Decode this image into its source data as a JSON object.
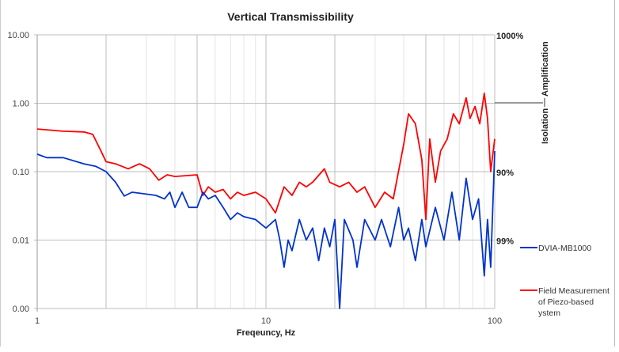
{
  "chart_data": {
    "type": "line",
    "title": "Vertical Transmissibility",
    "xlabel": "Freqeuncy, Hz",
    "ylabel": "",
    "x_scale": "log",
    "y_scale": "log",
    "xlim": [
      1,
      100
    ],
    "ylim": [
      0.001,
      10
    ],
    "x_ticks": [
      {
        "v": 1,
        "label": "1"
      },
      {
        "v": 10,
        "label": "10"
      },
      {
        "v": 100,
        "label": "100"
      }
    ],
    "y_ticks": [
      {
        "v": 10,
        "label": "10.00"
      },
      {
        "v": 1,
        "label": "1.00"
      },
      {
        "v": 0.1,
        "label": "0.10"
      },
      {
        "v": 0.01,
        "label": "0.01"
      },
      {
        "v": 0.001,
        "label": "0.00"
      }
    ],
    "right_axis_labels": [
      {
        "v": 10,
        "label": "1000%"
      },
      {
        "v": 0.1,
        "label": "90%"
      },
      {
        "v": 0.01,
        "label": "99%"
      }
    ],
    "region_labels": {
      "above": "Amplification",
      "below": "Isolation",
      "boundary": 1
    },
    "grid": true,
    "legend_placement": "right",
    "series": [
      {
        "name": "DVIA-MB1000",
        "color": "#0033cc",
        "x": [
          1,
          1.1,
          1.3,
          1.6,
          1.8,
          2,
          2.2,
          2.4,
          2.6,
          3,
          3.3,
          3.6,
          3.8,
          4,
          4.3,
          4.6,
          5,
          5.3,
          5.6,
          6,
          6.5,
          7,
          7.5,
          8,
          9,
          10,
          11,
          11.5,
          12,
          12.5,
          13,
          14,
          15,
          16,
          17,
          18,
          19,
          20,
          21,
          22,
          24,
          25,
          27,
          30,
          32,
          35,
          38,
          40,
          42,
          45,
          48,
          50,
          55,
          60,
          65,
          70,
          75,
          80,
          85,
          90,
          93,
          96,
          100
        ],
        "y": [
          0.18,
          0.16,
          0.16,
          0.13,
          0.12,
          0.1,
          0.07,
          0.044,
          0.05,
          0.047,
          0.045,
          0.04,
          0.05,
          0.03,
          0.05,
          0.03,
          0.03,
          0.05,
          0.04,
          0.045,
          0.03,
          0.02,
          0.025,
          0.022,
          0.02,
          0.015,
          0.02,
          0.01,
          0.004,
          0.01,
          0.007,
          0.02,
          0.01,
          0.015,
          0.005,
          0.015,
          0.008,
          0.02,
          0.001,
          0.02,
          0.01,
          0.004,
          0.02,
          0.01,
          0.02,
          0.008,
          0.03,
          0.01,
          0.015,
          0.005,
          0.02,
          0.008,
          0.03,
          0.01,
          0.05,
          0.01,
          0.08,
          0.02,
          0.04,
          0.003,
          0.02,
          0.004,
          0.2
        ]
      },
      {
        "name": "Field Measurement of Piezo-based System",
        "color": "#ff0000",
        "x": [
          1,
          1.3,
          1.6,
          1.75,
          1.9,
          2,
          2.2,
          2.5,
          2.8,
          3.1,
          3.4,
          3.7,
          4,
          5,
          5.3,
          5.6,
          6,
          6.5,
          7,
          7.5,
          8,
          9,
          10,
          11,
          12,
          13,
          14,
          15,
          16,
          18,
          19,
          21,
          23,
          25,
          27,
          30,
          33,
          36,
          40,
          42,
          45,
          48,
          50,
          52,
          55,
          58,
          62,
          66,
          70,
          75,
          78,
          82,
          86,
          90,
          93,
          96,
          100
        ],
        "y": [
          0.42,
          0.39,
          0.38,
          0.35,
          0.2,
          0.14,
          0.13,
          0.11,
          0.13,
          0.11,
          0.075,
          0.09,
          0.085,
          0.09,
          0.045,
          0.06,
          0.05,
          0.055,
          0.04,
          0.05,
          0.045,
          0.05,
          0.04,
          0.025,
          0.06,
          0.045,
          0.07,
          0.06,
          0.07,
          0.11,
          0.07,
          0.06,
          0.07,
          0.05,
          0.06,
          0.03,
          0.05,
          0.04,
          0.25,
          0.7,
          0.5,
          0.15,
          0.02,
          0.3,
          0.07,
          0.2,
          0.3,
          0.7,
          0.5,
          1.2,
          0.6,
          0.9,
          0.5,
          1.4,
          0.6,
          0.1,
          0.3
        ]
      }
    ]
  }
}
